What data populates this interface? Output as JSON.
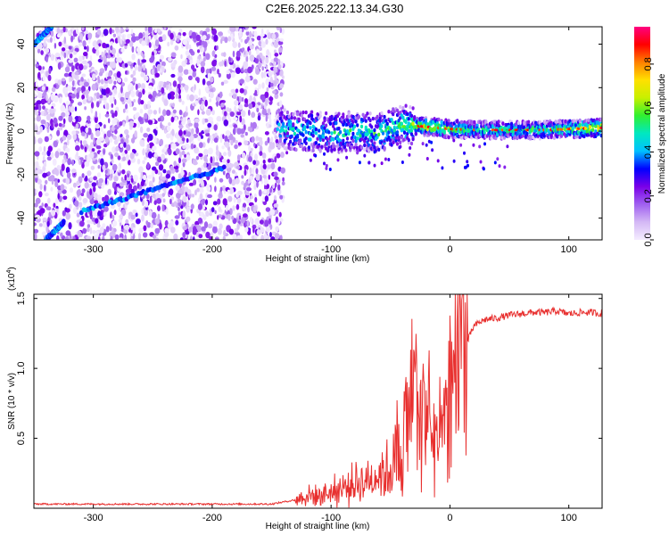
{
  "title": "C2E6.2025.222.13.34.G30",
  "chart_data": [
    {
      "type": "heatmap",
      "title": "C2E6.2025.222.13.34.G30",
      "xlabel": "Height of straight line (km)",
      "ylabel": "Frequency (Hz)",
      "xlim": [
        -350,
        128
      ],
      "ylim": [
        -50,
        48
      ],
      "xticks": [
        -300,
        -200,
        -100,
        0,
        100
      ],
      "yticks": [
        -40,
        -20,
        0,
        20,
        40
      ],
      "colorbar": {
        "label": "Normalized spectral amplitude",
        "range": [
          0,
          0.97
        ],
        "ticks": [
          0.0,
          0.2,
          0.4,
          0.6,
          0.8
        ],
        "tick_labels": [
          "0.0",
          "0.2",
          "0.4",
          "0.6",
          "0.8"
        ],
        "colors": [
          "#f4ecff",
          "#d4b8f5",
          "#a060f0",
          "#7a00e8",
          "#0000ff",
          "#00c0ff",
          "#00e8c0",
          "#30f030",
          "#c8f000",
          "#ffe000",
          "#ff8000",
          "#ff0000",
          "#ff0080"
        ]
      },
      "noise_region": {
        "x_range": [
          -350,
          -140
        ],
        "y_range": [
          -50,
          48
        ]
      },
      "sweep_traces": [
        {
          "x": [
            -340,
            -325
          ],
          "y": [
            -50,
            -42
          ]
        },
        {
          "x": [
            -310,
            -190
          ],
          "y": [
            -37,
            -17
          ]
        },
        {
          "x": [
            -350,
            -335
          ],
          "y": [
            40,
            48
          ]
        }
      ],
      "signal_band": {
        "x": [
          -145,
          -120,
          -100,
          -80,
          -60,
          -40,
          -20,
          0,
          20,
          40,
          60,
          80,
          100,
          128
        ],
        "center": [
          1,
          0,
          -1,
          0,
          -1,
          3,
          2,
          1,
          0.5,
          0.5,
          0.5,
          0.5,
          1,
          1.5
        ],
        "amplitude": [
          0.4,
          0.5,
          0.45,
          0.5,
          0.5,
          0.55,
          0.7,
          0.6,
          0.5,
          0.5,
          0.5,
          0.55,
          0.6,
          0.75
        ]
      },
      "grid": false
    },
    {
      "type": "line",
      "xlabel": "Height of straight line (km)",
      "ylabel": "SNR (10 * v/v)",
      "y_multiplier_label": "(x10",
      "y_multiplier_exp": "4",
      "y_multiplier_close": ")",
      "xlim": [
        -350,
        128
      ],
      "ylim": [
        0,
        15300
      ],
      "xticks": [
        -300,
        -200,
        -100,
        0,
        100
      ],
      "yticks": [
        5000,
        10000,
        15000
      ],
      "ytick_labels": [
        "0.5",
        "1.0",
        "1.5"
      ],
      "series": [
        {
          "color": "#e8302f",
          "x": [
            -350,
            -300,
            -250,
            -200,
            -150,
            -130,
            -120,
            -110,
            -100,
            -90,
            -80,
            -70,
            -60,
            -50,
            -45,
            -40,
            -35,
            -30,
            -25,
            -20,
            -15,
            -10,
            -5,
            0,
            5,
            10,
            15,
            20,
            25,
            30,
            40,
            50,
            60,
            70,
            80,
            90,
            100,
            110,
            120,
            128
          ],
          "y": [
            300,
            300,
            300,
            300,
            300,
            600,
            900,
            900,
            1200,
            1400,
            1800,
            2000,
            2500,
            2800,
            3500,
            4000,
            6000,
            8000,
            7000,
            6000,
            5500,
            4500,
            5500,
            8000,
            10500,
            11000,
            12000,
            13000,
            13300,
            13500,
            13600,
            13800,
            13900,
            14000,
            14000,
            14100,
            13900,
            14000,
            14000,
            13900
          ]
        }
      ],
      "grid": false
    }
  ]
}
